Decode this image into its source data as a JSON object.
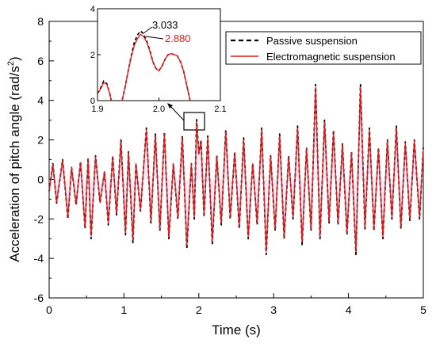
{
  "chart_data": {
    "type": "line",
    "xlabel": "Time (s)",
    "ylabel_main": "Acceleration of pitch angle (rad/s",
    "ylabel_sup": "2",
    "ylabel_close": ")",
    "xlim": [
      0,
      5
    ],
    "ylim": [
      -6,
      8
    ],
    "x_ticks": [
      "0",
      "1",
      "2",
      "3",
      "4",
      "5"
    ],
    "y_ticks": [
      "-6",
      "-4",
      "-2",
      "0",
      "2",
      "4",
      "6",
      "8"
    ],
    "legend": {
      "placement": "top-right",
      "entries": [
        {
          "label": "Passive suspension",
          "color": "#000000",
          "dashed": true
        },
        {
          "label": "Electromagnetic suspension",
          "color": "#e41a1c",
          "dashed": false
        }
      ]
    },
    "series": [
      {
        "name": "Passive suspension",
        "color": "#000000",
        "points": [
          [
            0.0,
            -0.6
          ],
          [
            0.05,
            0.8
          ],
          [
            0.1,
            -1.2
          ],
          [
            0.18,
            1.0
          ],
          [
            0.25,
            -2.0
          ],
          [
            0.3,
            0.6
          ],
          [
            0.36,
            -1.3
          ],
          [
            0.42,
            0.9
          ],
          [
            0.48,
            -2.5
          ],
          [
            0.52,
            1.1
          ],
          [
            0.56,
            -3.0
          ],
          [
            0.62,
            1.2
          ],
          [
            0.68,
            -1.2
          ],
          [
            0.74,
            0.4
          ],
          [
            0.79,
            -2.3
          ],
          [
            0.85,
            1.2
          ],
          [
            0.9,
            -1.8
          ],
          [
            0.96,
            2.0
          ],
          [
            1.02,
            -2.8
          ],
          [
            1.06,
            1.4
          ],
          [
            1.12,
            -3.2
          ],
          [
            1.16,
            0.8
          ],
          [
            1.22,
            -1.6
          ],
          [
            1.3,
            2.6
          ],
          [
            1.36,
            -2.2
          ],
          [
            1.42,
            2.3
          ],
          [
            1.48,
            -2.6
          ],
          [
            1.54,
            2.4
          ],
          [
            1.6,
            -3.0
          ],
          [
            1.66,
            0.8
          ],
          [
            1.72,
            -2.0
          ],
          [
            1.78,
            2.2
          ],
          [
            1.84,
            -3.5
          ],
          [
            1.9,
            0.8
          ],
          [
            1.94,
            -2.0
          ],
          [
            1.97,
            3.03
          ],
          [
            2.0,
            1.3
          ],
          [
            2.03,
            2.0
          ],
          [
            2.07,
            -1.9
          ],
          [
            2.12,
            2.2
          ],
          [
            2.18,
            -3.3
          ],
          [
            2.24,
            1.2
          ],
          [
            2.3,
            -2.3
          ],
          [
            2.36,
            2.5
          ],
          [
            2.42,
            -2.0
          ],
          [
            2.48,
            1.4
          ],
          [
            2.54,
            -2.5
          ],
          [
            2.6,
            2.1
          ],
          [
            2.66,
            -3.0
          ],
          [
            2.72,
            0.8
          ],
          [
            2.78,
            -2.3
          ],
          [
            2.84,
            2.6
          ],
          [
            2.9,
            -3.8
          ],
          [
            2.96,
            1.2
          ],
          [
            3.02,
            -2.6
          ],
          [
            3.08,
            2.3
          ],
          [
            3.14,
            -3.0
          ],
          [
            3.2,
            1.2
          ],
          [
            3.26,
            -2.0
          ],
          [
            3.32,
            2.7
          ],
          [
            3.38,
            -3.3
          ],
          [
            3.44,
            1.6
          ],
          [
            3.5,
            -2.6
          ],
          [
            3.56,
            4.8
          ],
          [
            3.62,
            -3.0
          ],
          [
            3.68,
            3.0
          ],
          [
            3.74,
            -2.2
          ],
          [
            3.8,
            2.5
          ],
          [
            3.86,
            -2.3
          ],
          [
            3.92,
            1.8
          ],
          [
            3.98,
            -2.8
          ],
          [
            4.04,
            1.4
          ],
          [
            4.1,
            -3.8
          ],
          [
            4.16,
            4.8
          ],
          [
            4.22,
            -2.5
          ],
          [
            4.28,
            2.6
          ],
          [
            4.34,
            -2.6
          ],
          [
            4.4,
            1.6
          ],
          [
            4.46,
            -3.0
          ],
          [
            4.52,
            2.0
          ],
          [
            4.58,
            -2.0
          ],
          [
            4.64,
            2.7
          ],
          [
            4.7,
            -2.5
          ],
          [
            4.76,
            1.9
          ],
          [
            4.82,
            -2.1
          ],
          [
            4.88,
            2.0
          ],
          [
            4.95,
            -2.0
          ],
          [
            5.0,
            1.6
          ]
        ]
      },
      {
        "name": "Electromagnetic suspension",
        "color": "#e41a1c",
        "points": [
          [
            0.0,
            -0.6
          ],
          [
            0.05,
            0.75
          ],
          [
            0.1,
            -1.15
          ],
          [
            0.18,
            0.95
          ],
          [
            0.25,
            -1.9
          ],
          [
            0.3,
            0.6
          ],
          [
            0.36,
            -1.25
          ],
          [
            0.42,
            0.85
          ],
          [
            0.48,
            -2.4
          ],
          [
            0.52,
            1.05
          ],
          [
            0.56,
            -2.85
          ],
          [
            0.62,
            1.15
          ],
          [
            0.68,
            -1.15
          ],
          [
            0.74,
            0.4
          ],
          [
            0.79,
            -2.2
          ],
          [
            0.85,
            1.15
          ],
          [
            0.9,
            -1.7
          ],
          [
            0.96,
            1.9
          ],
          [
            1.02,
            -2.7
          ],
          [
            1.06,
            1.35
          ],
          [
            1.12,
            -3.05
          ],
          [
            1.16,
            0.8
          ],
          [
            1.22,
            -1.55
          ],
          [
            1.3,
            2.5
          ],
          [
            1.36,
            -2.1
          ],
          [
            1.42,
            2.2
          ],
          [
            1.48,
            -2.5
          ],
          [
            1.54,
            2.3
          ],
          [
            1.6,
            -2.9
          ],
          [
            1.66,
            0.8
          ],
          [
            1.72,
            -1.9
          ],
          [
            1.78,
            2.1
          ],
          [
            1.84,
            -3.35
          ],
          [
            1.9,
            0.8
          ],
          [
            1.94,
            -1.9
          ],
          [
            1.97,
            2.88
          ],
          [
            2.0,
            1.3
          ],
          [
            2.03,
            1.95
          ],
          [
            2.07,
            -1.8
          ],
          [
            2.12,
            2.1
          ],
          [
            2.18,
            -3.15
          ],
          [
            2.24,
            1.15
          ],
          [
            2.3,
            -2.2
          ],
          [
            2.36,
            2.4
          ],
          [
            2.42,
            -1.9
          ],
          [
            2.48,
            1.35
          ],
          [
            2.54,
            -2.4
          ],
          [
            2.6,
            2.0
          ],
          [
            2.66,
            -2.9
          ],
          [
            2.72,
            0.8
          ],
          [
            2.78,
            -2.2
          ],
          [
            2.84,
            2.5
          ],
          [
            2.9,
            -3.65
          ],
          [
            2.96,
            1.15
          ],
          [
            3.02,
            -2.5
          ],
          [
            3.08,
            2.2
          ],
          [
            3.14,
            -2.9
          ],
          [
            3.2,
            1.15
          ],
          [
            3.26,
            -1.9
          ],
          [
            3.32,
            2.6
          ],
          [
            3.38,
            -3.15
          ],
          [
            3.44,
            1.55
          ],
          [
            3.5,
            -2.5
          ],
          [
            3.56,
            4.65
          ],
          [
            3.62,
            -2.9
          ],
          [
            3.68,
            2.9
          ],
          [
            3.74,
            -2.1
          ],
          [
            3.8,
            2.4
          ],
          [
            3.86,
            -2.2
          ],
          [
            3.92,
            1.75
          ],
          [
            3.98,
            -2.7
          ],
          [
            4.04,
            1.35
          ],
          [
            4.1,
            -3.65
          ],
          [
            4.16,
            4.65
          ],
          [
            4.22,
            -2.4
          ],
          [
            4.28,
            2.5
          ],
          [
            4.34,
            -2.5
          ],
          [
            4.4,
            1.55
          ],
          [
            4.46,
            -2.9
          ],
          [
            4.52,
            1.95
          ],
          [
            4.58,
            -1.9
          ],
          [
            4.64,
            2.6
          ],
          [
            4.7,
            -2.4
          ],
          [
            4.76,
            1.85
          ],
          [
            4.82,
            -2.0
          ],
          [
            4.88,
            1.95
          ],
          [
            4.95,
            -1.9
          ],
          [
            5.0,
            1.55
          ]
        ]
      }
    ],
    "inset": {
      "xlim": [
        1.9,
        2.1
      ],
      "ylim": [
        0,
        4
      ],
      "x_ticks": [
        "1.9",
        "2.0",
        "2.1"
      ],
      "y_ticks": [
        "0",
        "2",
        "4"
      ],
      "series": [
        {
          "name": "Passive suspension",
          "color": "#000000",
          "points": [
            [
              1.9,
              0.3
            ],
            [
              1.905,
              0.55
            ],
            [
              1.91,
              0.85
            ],
            [
              1.915,
              0.75
            ],
            [
              1.92,
              0.3
            ],
            [
              1.925,
              -0.3
            ],
            [
              1.93,
              -0.6
            ],
            [
              1.935,
              -0.4
            ],
            [
              1.94,
              0.0
            ],
            [
              1.945,
              0.6
            ],
            [
              1.95,
              1.3
            ],
            [
              1.955,
              1.95
            ],
            [
              1.96,
              2.55
            ],
            [
              1.965,
              2.85
            ],
            [
              1.97,
              3.03
            ],
            [
              1.975,
              2.9
            ],
            [
              1.98,
              2.6
            ],
            [
              1.985,
              2.2
            ],
            [
              1.99,
              1.7
            ],
            [
              1.995,
              1.4
            ],
            [
              2.0,
              1.3
            ],
            [
              2.005,
              1.5
            ],
            [
              2.01,
              1.8
            ],
            [
              2.015,
              2.0
            ],
            [
              2.02,
              2.05
            ],
            [
              2.025,
              2.0
            ],
            [
              2.03,
              1.95
            ],
            [
              2.035,
              1.7
            ],
            [
              2.04,
              1.3
            ],
            [
              2.045,
              0.7
            ],
            [
              2.05,
              0.1
            ],
            [
              2.055,
              -0.4
            ]
          ]
        },
        {
          "name": "Electromagnetic suspension",
          "color": "#e41a1c",
          "points": [
            [
              1.9,
              0.3
            ],
            [
              1.905,
              0.5
            ],
            [
              1.91,
              0.78
            ],
            [
              1.915,
              0.72
            ],
            [
              1.92,
              0.3
            ],
            [
              1.925,
              -0.3
            ],
            [
              1.93,
              -0.6
            ],
            [
              1.935,
              -0.4
            ],
            [
              1.94,
              0.0
            ],
            [
              1.945,
              0.6
            ],
            [
              1.95,
              1.3
            ],
            [
              1.955,
              1.9
            ],
            [
              1.96,
              2.4
            ],
            [
              1.965,
              2.7
            ],
            [
              1.97,
              2.88
            ],
            [
              1.975,
              2.8
            ],
            [
              1.98,
              2.55
            ],
            [
              1.985,
              2.15
            ],
            [
              1.99,
              1.7
            ],
            [
              1.995,
              1.4
            ],
            [
              2.0,
              1.3
            ],
            [
              2.005,
              1.5
            ],
            [
              2.01,
              1.8
            ],
            [
              2.015,
              2.0
            ],
            [
              2.02,
              2.05
            ],
            [
              2.025,
              2.0
            ],
            [
              2.03,
              1.95
            ],
            [
              2.035,
              1.7
            ],
            [
              2.04,
              1.3
            ],
            [
              2.045,
              0.7
            ],
            [
              2.05,
              0.1
            ],
            [
              2.055,
              -0.4
            ]
          ]
        }
      ],
      "annotations": [
        {
          "text": "3.033",
          "color": "#000000"
        },
        {
          "text": "2.880",
          "color": "#e41a1c"
        }
      ]
    },
    "grid": false
  }
}
